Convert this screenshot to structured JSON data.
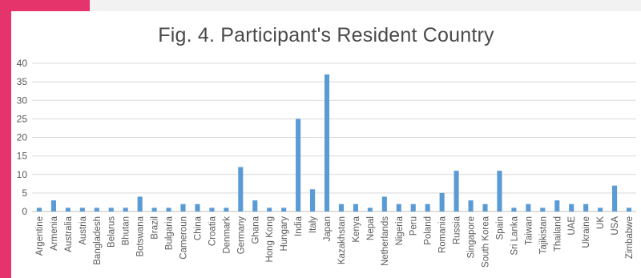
{
  "chart_data": {
    "type": "bar",
    "title": "Fig. 4.  Participant's Resident Country",
    "xlabel": "",
    "ylabel": "",
    "ylim": [
      0,
      40
    ],
    "yticks": [
      0,
      5,
      10,
      15,
      20,
      25,
      30,
      35,
      40
    ],
    "grid": true,
    "legend": "none",
    "categories": [
      "Argentine",
      "Armenia",
      "Australia",
      "Austria",
      "Bangladesh",
      "Belarus",
      "Bhutan",
      "Botswana",
      "Brazil",
      "Bulgaria",
      "Cameroun",
      "China",
      "Croatia",
      "Denmark",
      "Germany",
      "Ghana",
      "Hong Kong",
      "Hungary",
      "India",
      "Italy",
      "Japan",
      "Kazakhstan",
      "Kenya",
      "Nepal",
      "Netherlands",
      "Nigeria",
      "Peru",
      "Poland",
      "Romania",
      "Russia",
      "Singapore",
      "South Korea",
      "Spain",
      "Sri Lanka",
      "Taiwan",
      "Tajikistan",
      "Thailand",
      "UAE",
      "Ukraine",
      "UK",
      "USA",
      "Zimbabwe"
    ],
    "values": [
      1,
      3,
      1,
      1,
      1,
      1,
      1,
      4,
      1,
      1,
      2,
      2,
      1,
      1,
      12,
      3,
      1,
      1,
      25,
      6,
      37,
      2,
      2,
      1,
      4,
      2,
      2,
      2,
      5,
      11,
      3,
      2,
      11,
      1,
      2,
      1,
      3,
      2,
      2,
      1,
      7,
      1
    ]
  },
  "colors": {
    "bar": "#5b9bd5",
    "grid": "#d9d9d9",
    "axis_text": "#595959",
    "title": "#4a4a4a",
    "accent": "#e5336b"
  }
}
